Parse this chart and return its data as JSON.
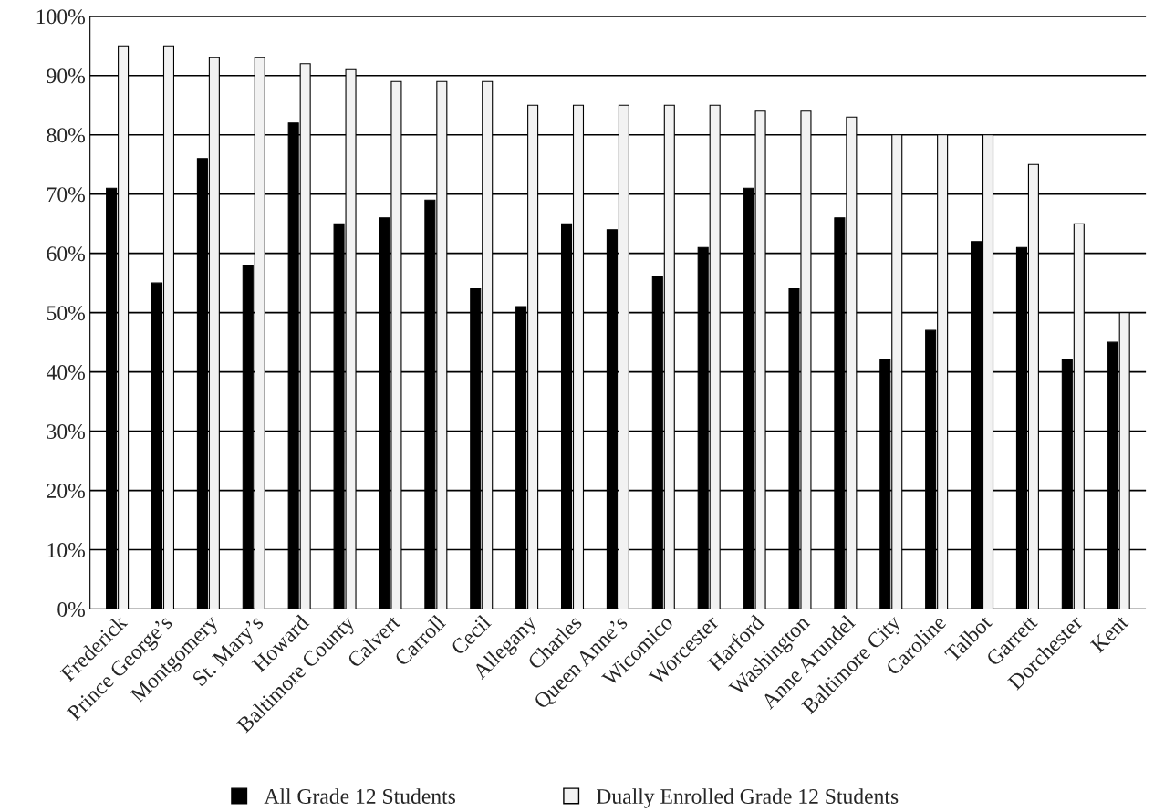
{
  "chart_data": {
    "type": "bar",
    "categories": [
      "Frederick",
      "Prince George’s",
      "Montgomery",
      "St. Mary’s",
      "Howard",
      "Baltimore County",
      "Calvert",
      "Carroll",
      "Cecil",
      "Allegany",
      "Charles",
      "Queen Anne’s",
      "Wicomico",
      "Worcester",
      "Harford",
      "Washington",
      "Anne Arundel",
      "Baltimore City",
      "Caroline",
      "Talbot",
      "Garrett",
      "Dorchester",
      "Kent"
    ],
    "series": [
      {
        "name": "All Grade 12 Students",
        "color": "#000000",
        "values": [
          71,
          55,
          76,
          58,
          82,
          65,
          66,
          69,
          54,
          51,
          65,
          64,
          56,
          61,
          71,
          54,
          66,
          42,
          47,
          62,
          61,
          42,
          45
        ]
      },
      {
        "name": "Dually Enrolled Grade 12 Students",
        "color": "#f2f2f2",
        "values": [
          95,
          95,
          93,
          93,
          92,
          91,
          89,
          89,
          89,
          85,
          85,
          85,
          85,
          85,
          84,
          84,
          83,
          80,
          80,
          80,
          75,
          65,
          50
        ]
      }
    ],
    "ylim": [
      0,
      100
    ],
    "yticks": [
      {
        "value": 0,
        "label": "0%"
      },
      {
        "value": 10,
        "label": "10%"
      },
      {
        "value": 20,
        "label": "20%"
      },
      {
        "value": 30,
        "label": "30%"
      },
      {
        "value": 40,
        "label": "40%"
      },
      {
        "value": 50,
        "label": "50%"
      },
      {
        "value": 60,
        "label": "60%"
      },
      {
        "value": 70,
        "label": "70%"
      },
      {
        "value": 80,
        "label": "80%"
      },
      {
        "value": 90,
        "label": "90%"
      },
      {
        "value": 100,
        "label": "100%"
      }
    ],
    "grid": "y",
    "legend": "bottom"
  }
}
